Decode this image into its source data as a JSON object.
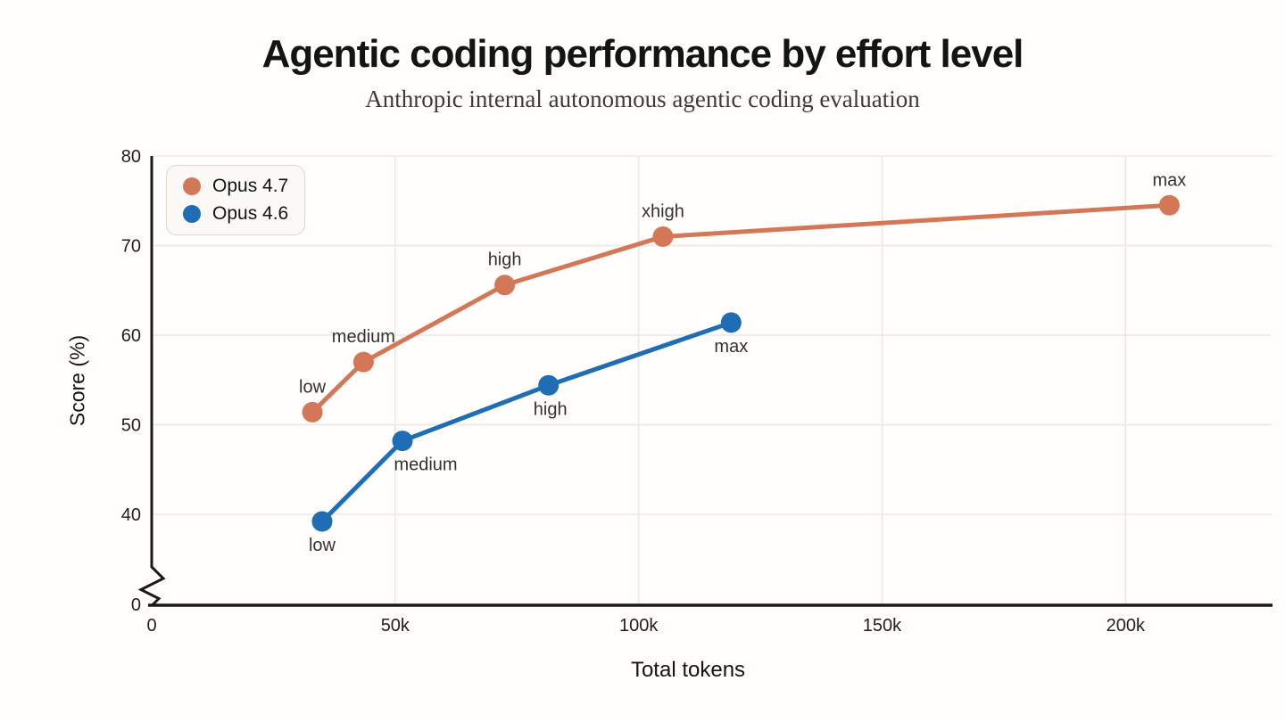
{
  "header": {
    "title": "Agentic coding performance by effort level",
    "subtitle": "Anthropic internal autonomous agentic coding evaluation"
  },
  "chart_data": {
    "type": "line",
    "title": "Agentic coding performance by effort level",
    "subtitle": "Anthropic internal autonomous agentic coding evaluation",
    "xlabel": "Total tokens",
    "ylabel": "Score (%)",
    "xlim": [
      0,
      230000
    ],
    "ylim_display": [
      40,
      80
    ],
    "y_axis_break_to_zero": true,
    "grid": true,
    "legend_position": "top-left",
    "x_ticks": [
      {
        "value": 0,
        "label": "0"
      },
      {
        "value": 50000,
        "label": "50k"
      },
      {
        "value": 100000,
        "label": "100k"
      },
      {
        "value": 150000,
        "label": "150k"
      },
      {
        "value": 200000,
        "label": "200k"
      }
    ],
    "y_ticks": [
      {
        "value": 80,
        "label": "80"
      },
      {
        "value": 70,
        "label": "70"
      },
      {
        "value": 60,
        "label": "60"
      },
      {
        "value": 50,
        "label": "50"
      },
      {
        "value": 40,
        "label": "40"
      },
      {
        "value": 0,
        "label": "0",
        "at_break": true
      }
    ],
    "series": [
      {
        "name": "Opus 4.7",
        "color": "#d47757",
        "points": [
          {
            "x": 33000,
            "y": 51.4,
            "label": "low",
            "label_side": "above",
            "label_dx": 0
          },
          {
            "x": 43500,
            "y": 57.0,
            "label": "medium",
            "label_side": "above",
            "label_dx": 0
          },
          {
            "x": 72500,
            "y": 65.6,
            "label": "high",
            "label_side": "above",
            "label_dx": 0
          },
          {
            "x": 105000,
            "y": 71.0,
            "label": "xhigh",
            "label_side": "above",
            "label_dx": 0
          },
          {
            "x": 209000,
            "y": 74.5,
            "label": "max",
            "label_side": "above",
            "label_dx": 0
          }
        ]
      },
      {
        "name": "Opus 4.6",
        "color": "#1f6db4",
        "points": [
          {
            "x": 35000,
            "y": 39.2,
            "label": "low",
            "label_side": "below",
            "label_dx": 0
          },
          {
            "x": 51500,
            "y": 48.2,
            "label": "medium",
            "label_side": "below",
            "label_dx": 26
          },
          {
            "x": 81500,
            "y": 54.4,
            "label": "high",
            "label_side": "below",
            "label_dx": 2
          },
          {
            "x": 119000,
            "y": 61.4,
            "label": "max",
            "label_side": "below",
            "label_dx": 0
          }
        ]
      }
    ]
  },
  "colors": {
    "accent_orange": "#d47757",
    "accent_blue": "#1f6db4",
    "gridline": "#ebe8e1",
    "axis": "#1a1915",
    "legend_background": "#faf9f5",
    "legend_border": "#ddd8cb",
    "page_background": "#fffefc"
  }
}
